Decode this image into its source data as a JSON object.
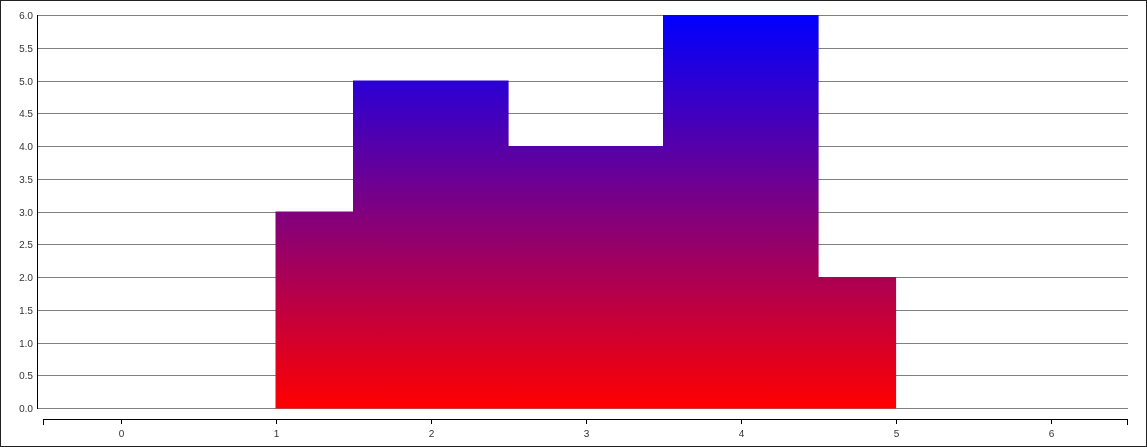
{
  "chart_data": {
    "type": "area",
    "subtype": "step",
    "title": "",
    "xlabel": "",
    "ylabel": "",
    "xlim": [
      -0.5,
      6.5
    ],
    "ylim": [
      0,
      6
    ],
    "x_ticks": [
      0,
      1,
      2,
      3,
      4,
      5,
      6
    ],
    "y_ticks": [
      0.0,
      0.5,
      1.0,
      1.5,
      2.0,
      2.5,
      3.0,
      3.5,
      4.0,
      4.5,
      5.0,
      5.5,
      6.0
    ],
    "y_tick_labels": [
      "0.0",
      "0.5",
      "1.0",
      "1.5",
      "2.0",
      "2.5",
      "3.0",
      "3.5",
      "4.0",
      "4.5",
      "5.0",
      "5.5",
      "6.0"
    ],
    "grid": "horizontal",
    "legend": "none",
    "steps": [
      {
        "x_start": 1.0,
        "x_end": 1.5,
        "value": 3
      },
      {
        "x_start": 1.5,
        "x_end": 2.5,
        "value": 5
      },
      {
        "x_start": 2.5,
        "x_end": 3.5,
        "value": 4
      },
      {
        "x_start": 3.5,
        "x_end": 4.5,
        "value": 6
      },
      {
        "x_start": 4.5,
        "x_end": 5.0,
        "value": 2
      }
    ],
    "gradient": {
      "bottom_color": "#ff0000",
      "top_color": "#0000ff"
    }
  }
}
